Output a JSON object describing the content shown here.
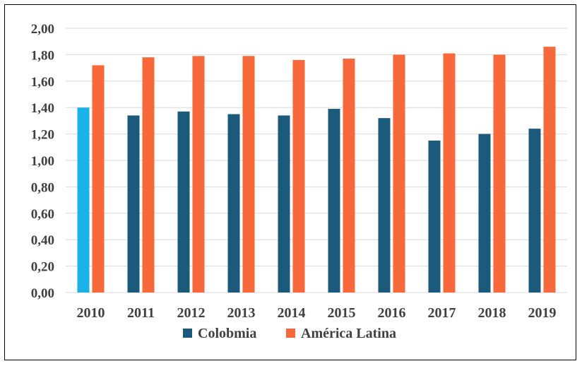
{
  "chart_data": {
    "type": "bar",
    "categories": [
      "2010",
      "2011",
      "2012",
      "2013",
      "2014",
      "2015",
      "2016",
      "2017",
      "2018",
      "2019"
    ],
    "series": [
      {
        "name": "Colobmia",
        "values": [
          1.4,
          1.34,
          1.37,
          1.35,
          1.34,
          1.39,
          1.32,
          1.15,
          1.2,
          1.24
        ],
        "color": "#1b5a7a",
        "highlight": {
          "index": 0,
          "color": "#1ab2e8"
        }
      },
      {
        "name": "América Latina",
        "values": [
          1.72,
          1.78,
          1.79,
          1.79,
          1.76,
          1.77,
          1.8,
          1.81,
          1.8,
          1.86
        ],
        "color": "#f7693a"
      }
    ],
    "yticks": [
      "0,00",
      "0,20",
      "0,40",
      "0,60",
      "0,80",
      "1,00",
      "1,20",
      "1,40",
      "1,60",
      "1,80",
      "2,00"
    ],
    "ylim": [
      0,
      2.0
    ],
    "grid": true,
    "legend_position": "bottom"
  }
}
